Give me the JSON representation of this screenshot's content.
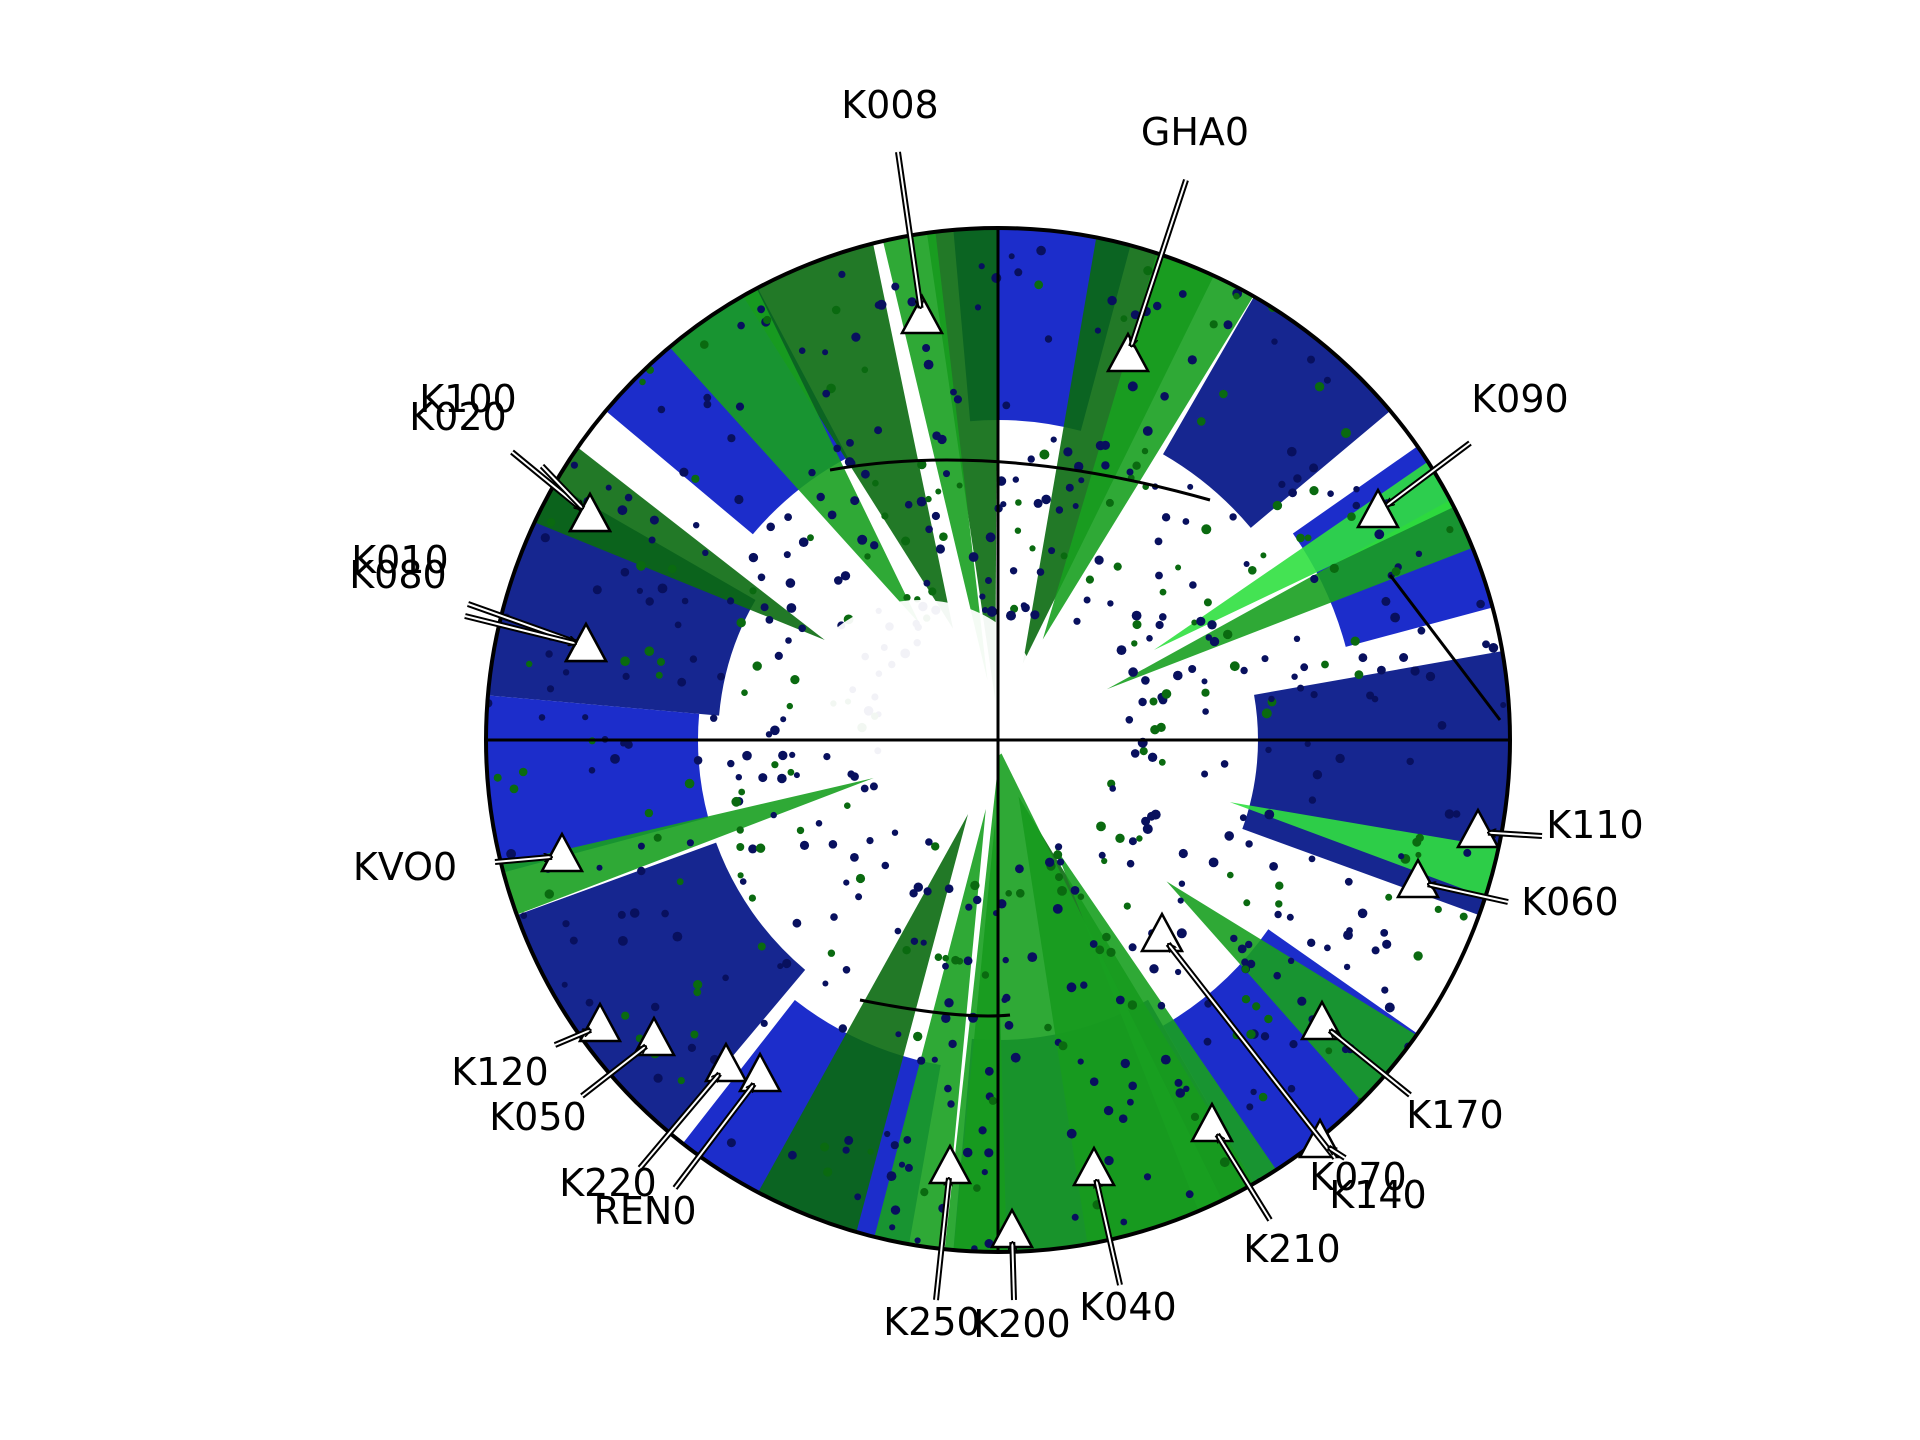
{
  "colors": {
    "background": "#ffffff",
    "outline": "#000000",
    "blue_deep": "#0a1a8a",
    "blue_mid": "#1022c8",
    "blue_dark_dots": "#08105e",
    "green_dark": "#0a6a10",
    "green_mid": "#18a020",
    "green_light": "#30e040",
    "marker_fill": "#ffffff",
    "marker_stroke": "#000000"
  },
  "stations": [
    {
      "name": "K008"
    },
    {
      "name": "GHA0"
    },
    {
      "name": "K090"
    },
    {
      "name": "K100"
    },
    {
      "name": "K020"
    },
    {
      "name": "K010"
    },
    {
      "name": "K080"
    },
    {
      "name": "K110"
    },
    {
      "name": "K060"
    },
    {
      "name": "KVO0"
    },
    {
      "name": "K170"
    },
    {
      "name": "K120"
    },
    {
      "name": "K050"
    },
    {
      "name": "K220"
    },
    {
      "name": "REN0"
    },
    {
      "name": "K070"
    },
    {
      "name": "K140"
    },
    {
      "name": "K210"
    },
    {
      "name": "K040"
    },
    {
      "name": "K250"
    },
    {
      "name": "K200"
    }
  ]
}
